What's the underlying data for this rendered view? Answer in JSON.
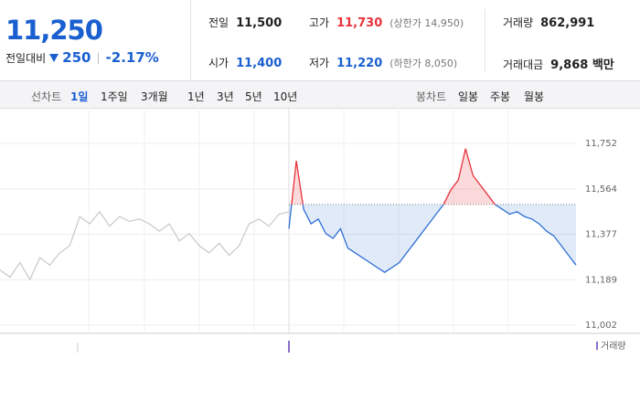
{
  "quote": {
    "price": "11,250",
    "change_label": "전일대비",
    "change": "250",
    "change_rate": "-2.17%"
  },
  "stats": [
    {
      "label": "전일",
      "value": "11,500",
      "color": "#222222"
    },
    {
      "label": "고가",
      "value": "11,730",
      "note": "(상한가 14,950)",
      "color": "#e8323c"
    },
    {
      "label": "거래량",
      "value": "862,991",
      "color": "#222222"
    },
    {
      "label": "시가",
      "value": "11,400",
      "color": "#1a5fd0"
    },
    {
      "label": "저가",
      "value": "11,220",
      "note": "(하한가 8,050)",
      "color": "#1a5fd0"
    },
    {
      "label": "거래대금",
      "value": "9,868 백만",
      "color": "#222222"
    }
  ],
  "tabs": {
    "line_chart": "선차트",
    "periods": [
      "1일",
      "1주일",
      "3개월",
      "1년",
      "3년",
      "5년",
      "10년"
    ],
    "selected": 0,
    "candle_chart": "봉차트",
    "candle_periods": [
      "일봉",
      "주봉",
      "월봉"
    ]
  },
  "chart_data": {
    "type": "line",
    "ylim": [
      11002,
      11752
    ],
    "yticks": [
      {
        "value": 11752,
        "label": "11,752"
      },
      {
        "value": 11564,
        "label": "11,564"
      },
      {
        "value": 11377,
        "label": "11,377"
      },
      {
        "value": 11189,
        "label": "11,189"
      },
      {
        "value": 11002,
        "label": "11,002"
      }
    ],
    "up_color": "#e8323c",
    "down_color": "#2f6fd6",
    "series": [
      {
        "color": "#c8c8c8",
        "values": [
          11230,
          11200,
          11260,
          11190,
          11280,
          11250,
          11300,
          11330,
          11450,
          11420,
          11470,
          11410,
          11450,
          11430,
          11440,
          11420,
          11390,
          11420,
          11350,
          11380,
          11330,
          11300,
          11340,
          11290,
          11330,
          11420,
          11440,
          11410,
          11460,
          11470
        ]
      },
      {
        "color": "#2f6fd6",
        "values": [
          11400,
          11680,
          11480,
          11420,
          11440,
          11380,
          11360,
          11400,
          11320,
          11300,
          11280,
          11260,
          11240,
          11220,
          11240,
          11260,
          11300,
          11340,
          11380,
          11420,
          11460,
          11500,
          11560,
          11600,
          11730,
          11620,
          11580,
          11540,
          11500,
          11480,
          11460,
          11470,
          11450,
          11440,
          11420,
          11390,
          11370,
          11330,
          11290,
          11250
        ]
      }
    ],
    "volume_label": "거래량"
  }
}
